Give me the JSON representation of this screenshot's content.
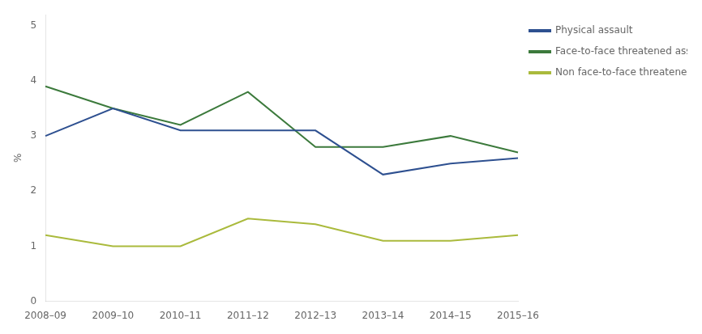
{
  "chart_data": {
    "type": "line",
    "categories": [
      "2008–09",
      "2009–10",
      "2010–11",
      "2011–12",
      "2012–13",
      "2013–14",
      "2014–15",
      "2015–16"
    ],
    "series": [
      {
        "name": "Physical assault",
        "color": "#2e5090",
        "values": [
          3.0,
          3.5,
          3.1,
          3.1,
          3.1,
          2.3,
          2.5,
          2.6
        ]
      },
      {
        "name": "Face-to-face threatened assault",
        "color": "#3c7a3c",
        "values": [
          3.9,
          3.5,
          3.2,
          3.8,
          2.8,
          2.8,
          3.0,
          2.7
        ]
      },
      {
        "name": "Non face-to-face threatened assault",
        "color": "#aaba3c",
        "values": [
          1.2,
          1.0,
          1.0,
          1.5,
          1.4,
          1.1,
          1.1,
          1.2
        ]
      }
    ],
    "ylabel": "%",
    "ylim": [
      0,
      5.2
    ],
    "yticks": [
      0,
      1,
      2,
      3,
      4,
      5
    ],
    "grid": false,
    "legend": "right"
  }
}
